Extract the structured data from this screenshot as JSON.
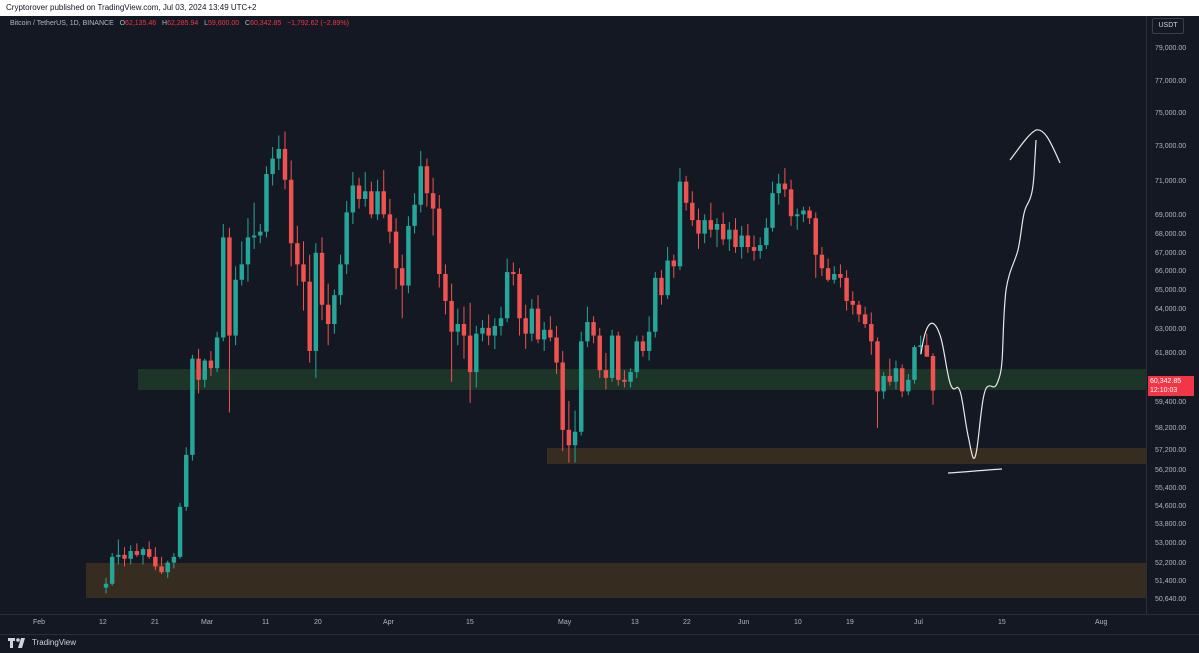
{
  "publish": {
    "text": "Cryptorover published on TradingView.com, Jul 03, 2024 13:49 UTC+2"
  },
  "symbol": {
    "name": "Bitcoin / TetherUS, 1D, BINANCE",
    "o_label": "O",
    "o": "62,135.46",
    "h_label": "H",
    "h": "62,285.94",
    "l_label": "L",
    "l": "59,600.00",
    "c_label": "C",
    "c": "60,342.85",
    "change": "−1,792.62 (−2.89%)"
  },
  "currency": "USDT",
  "current_price": {
    "price": "60,342.85",
    "countdown": "12:10:03"
  },
  "price_ticks": [
    "79,000.00",
    "77,000.00",
    "75,000.00",
    "73,000.00",
    "71,000.00",
    "69,000.00",
    "68,000.00",
    "67,000.00",
    "66,000.00",
    "65,000.00",
    "64,000.00",
    "63,000.00",
    "61,800.00",
    "59,400.00",
    "58,200.00",
    "57,200.00",
    "56,200.00",
    "55,400.00",
    "54,600.00",
    "53,800.00",
    "53,000.00",
    "52,200.00",
    "51,400.00",
    "50,640.00"
  ],
  "time_ticks": [
    "Feb",
    "12",
    "21",
    "Mar",
    "11",
    "20",
    "Apr",
    "15",
    "May",
    "13",
    "22",
    "Jun",
    "10",
    "19",
    "Jul",
    "15",
    "Aug"
  ],
  "colors": {
    "up": "#26a69a",
    "down": "#ef5350",
    "green_zone": "#1e3b2a",
    "orange_zone": "#3a3020",
    "bg": "#141823"
  },
  "footer": {
    "brand": "TradingView"
  },
  "chart_data": {
    "type": "candlestick",
    "timeframe": "1D",
    "ylim": [
      50000,
      80000
    ],
    "zones": [
      {
        "kind": "support",
        "low": 59800,
        "high": 61000,
        "color": "green"
      },
      {
        "kind": "support",
        "low": 56500,
        "high": 57400,
        "color": "orange"
      },
      {
        "kind": "support",
        "low": 50800,
        "high": 52400,
        "color": "orange"
      }
    ],
    "candles": [
      {
        "o": 50100,
        "h": 50600,
        "l": 49800,
        "c": 50300
      },
      {
        "o": 50300,
        "h": 51900,
        "l": 50200,
        "c": 51700
      },
      {
        "o": 51700,
        "h": 52600,
        "l": 51300,
        "c": 51800
      },
      {
        "o": 51800,
        "h": 52200,
        "l": 51200,
        "c": 51600
      },
      {
        "o": 51600,
        "h": 52300,
        "l": 51300,
        "c": 52000
      },
      {
        "o": 52000,
        "h": 52400,
        "l": 51700,
        "c": 51800
      },
      {
        "o": 51800,
        "h": 52200,
        "l": 51300,
        "c": 52100
      },
      {
        "o": 52100,
        "h": 52500,
        "l": 51600,
        "c": 51700
      },
      {
        "o": 51700,
        "h": 52200,
        "l": 51000,
        "c": 51200
      },
      {
        "o": 51200,
        "h": 51700,
        "l": 50800,
        "c": 50900
      },
      {
        "o": 50900,
        "h": 51500,
        "l": 50600,
        "c": 51400
      },
      {
        "o": 51400,
        "h": 51900,
        "l": 51100,
        "c": 51700
      },
      {
        "o": 51700,
        "h": 54500,
        "l": 51600,
        "c": 54300
      },
      {
        "o": 54300,
        "h": 57400,
        "l": 54100,
        "c": 57000
      },
      {
        "o": 57000,
        "h": 62200,
        "l": 56700,
        "c": 62000
      },
      {
        "o": 62000,
        "h": 62500,
        "l": 60200,
        "c": 60900
      },
      {
        "o": 60900,
        "h": 62000,
        "l": 60500,
        "c": 61900
      },
      {
        "o": 61900,
        "h": 62400,
        "l": 61100,
        "c": 61500
      },
      {
        "o": 61500,
        "h": 63400,
        "l": 61300,
        "c": 63100
      },
      {
        "o": 63100,
        "h": 69000,
        "l": 62900,
        "c": 68300
      },
      {
        "o": 68300,
        "h": 68800,
        "l": 59200,
        "c": 63200
      },
      {
        "o": 63200,
        "h": 66800,
        "l": 62700,
        "c": 66100
      },
      {
        "o": 66100,
        "h": 68100,
        "l": 65800,
        "c": 66900
      },
      {
        "o": 66900,
        "h": 69300,
        "l": 66000,
        "c": 68300
      },
      {
        "o": 68300,
        "h": 70100,
        "l": 67700,
        "c": 68400
      },
      {
        "o": 68400,
        "h": 69000,
        "l": 68000,
        "c": 68600
      },
      {
        "o": 68600,
        "h": 72000,
        "l": 68300,
        "c": 71600
      },
      {
        "o": 71600,
        "h": 73000,
        "l": 71000,
        "c": 72400
      },
      {
        "o": 72400,
        "h": 73600,
        "l": 71800,
        "c": 72900
      },
      {
        "o": 72900,
        "h": 73800,
        "l": 70800,
        "c": 71300
      },
      {
        "o": 71300,
        "h": 72300,
        "l": 66800,
        "c": 68000
      },
      {
        "o": 68000,
        "h": 68900,
        "l": 65800,
        "c": 66900
      },
      {
        "o": 66900,
        "h": 68100,
        "l": 64500,
        "c": 66000
      },
      {
        "o": 66000,
        "h": 67400,
        "l": 61800,
        "c": 62400
      },
      {
        "o": 62400,
        "h": 68000,
        "l": 61000,
        "c": 67500
      },
      {
        "o": 67500,
        "h": 68300,
        "l": 64000,
        "c": 64800
      },
      {
        "o": 64800,
        "h": 65900,
        "l": 62700,
        "c": 63800
      },
      {
        "o": 63800,
        "h": 65600,
        "l": 63300,
        "c": 65300
      },
      {
        "o": 65300,
        "h": 67400,
        "l": 64800,
        "c": 66900
      },
      {
        "o": 66900,
        "h": 70200,
        "l": 66400,
        "c": 69600
      },
      {
        "o": 69600,
        "h": 71700,
        "l": 69000,
        "c": 71000
      },
      {
        "o": 71000,
        "h": 71400,
        "l": 69800,
        "c": 70300
      },
      {
        "o": 70300,
        "h": 71700,
        "l": 69900,
        "c": 70700
      },
      {
        "o": 70700,
        "h": 71200,
        "l": 69300,
        "c": 69500
      },
      {
        "o": 69500,
        "h": 71300,
        "l": 69200,
        "c": 70700
      },
      {
        "o": 70700,
        "h": 71800,
        "l": 69300,
        "c": 69500
      },
      {
        "o": 69500,
        "h": 70300,
        "l": 68000,
        "c": 68600
      },
      {
        "o": 68600,
        "h": 69300,
        "l": 65600,
        "c": 66700
      },
      {
        "o": 66700,
        "h": 67400,
        "l": 64100,
        "c": 65800
      },
      {
        "o": 65800,
        "h": 69400,
        "l": 65400,
        "c": 68900
      },
      {
        "o": 68900,
        "h": 70600,
        "l": 68500,
        "c": 70000
      },
      {
        "o": 70000,
        "h": 72800,
        "l": 69600,
        "c": 72000
      },
      {
        "o": 72000,
        "h": 72400,
        "l": 69900,
        "c": 70600
      },
      {
        "o": 70600,
        "h": 71400,
        "l": 68400,
        "c": 69800
      },
      {
        "o": 69800,
        "h": 70500,
        "l": 65700,
        "c": 66400
      },
      {
        "o": 66400,
        "h": 66900,
        "l": 64300,
        "c": 65000
      },
      {
        "o": 65000,
        "h": 65900,
        "l": 60800,
        "c": 63400
      },
      {
        "o": 63400,
        "h": 64600,
        "l": 62700,
        "c": 63800
      },
      {
        "o": 63800,
        "h": 64700,
        "l": 62000,
        "c": 63200
      },
      {
        "o": 63200,
        "h": 64900,
        "l": 59700,
        "c": 61300
      },
      {
        "o": 61300,
        "h": 63700,
        "l": 60500,
        "c": 63300
      },
      {
        "o": 63300,
        "h": 64000,
        "l": 62900,
        "c": 63600
      },
      {
        "o": 63600,
        "h": 64300,
        "l": 62700,
        "c": 63200
      },
      {
        "o": 63200,
        "h": 64100,
        "l": 62500,
        "c": 63700
      },
      {
        "o": 63700,
        "h": 64700,
        "l": 63200,
        "c": 64100
      },
      {
        "o": 64100,
        "h": 67200,
        "l": 63900,
        "c": 66500
      },
      {
        "o": 66500,
        "h": 67000,
        "l": 65800,
        "c": 66400
      },
      {
        "o": 66400,
        "h": 66700,
        "l": 63200,
        "c": 64100
      },
      {
        "o": 64100,
        "h": 64800,
        "l": 62500,
        "c": 63300
      },
      {
        "o": 63300,
        "h": 65100,
        "l": 62900,
        "c": 64600
      },
      {
        "o": 64600,
        "h": 65300,
        "l": 62800,
        "c": 63000
      },
      {
        "o": 63000,
        "h": 63900,
        "l": 62400,
        "c": 63500
      },
      {
        "o": 63500,
        "h": 64200,
        "l": 62900,
        "c": 63100
      },
      {
        "o": 63100,
        "h": 63700,
        "l": 61200,
        "c": 61800
      },
      {
        "o": 61800,
        "h": 62400,
        "l": 57200,
        "c": 58300
      },
      {
        "o": 58300,
        "h": 59800,
        "l": 56600,
        "c": 57500
      },
      {
        "o": 57500,
        "h": 59300,
        "l": 56600,
        "c": 58200
      },
      {
        "o": 58200,
        "h": 63400,
        "l": 58000,
        "c": 62900
      },
      {
        "o": 62900,
        "h": 64700,
        "l": 62600,
        "c": 63900
      },
      {
        "o": 63900,
        "h": 64200,
        "l": 62800,
        "c": 63200
      },
      {
        "o": 63200,
        "h": 63600,
        "l": 61000,
        "c": 61400
      },
      {
        "o": 61400,
        "h": 62300,
        "l": 60400,
        "c": 61000
      },
      {
        "o": 61000,
        "h": 63500,
        "l": 60800,
        "c": 63200
      },
      {
        "o": 63200,
        "h": 63400,
        "l": 60600,
        "c": 60900
      },
      {
        "o": 60900,
        "h": 61400,
        "l": 60500,
        "c": 60800
      },
      {
        "o": 60800,
        "h": 61500,
        "l": 60500,
        "c": 61300
      },
      {
        "o": 61300,
        "h": 63200,
        "l": 61000,
        "c": 62900
      },
      {
        "o": 62900,
        "h": 63200,
        "l": 62100,
        "c": 62400
      },
      {
        "o": 62400,
        "h": 64200,
        "l": 61900,
        "c": 63400
      },
      {
        "o": 63400,
        "h": 66500,
        "l": 63100,
        "c": 66200
      },
      {
        "o": 66200,
        "h": 66600,
        "l": 64800,
        "c": 65300
      },
      {
        "o": 65300,
        "h": 67800,
        "l": 65100,
        "c": 67100
      },
      {
        "o": 67100,
        "h": 67400,
        "l": 66200,
        "c": 66800
      },
      {
        "o": 66800,
        "h": 71900,
        "l": 66600,
        "c": 71200
      },
      {
        "o": 71200,
        "h": 71500,
        "l": 69700,
        "c": 70100
      },
      {
        "o": 70100,
        "h": 70700,
        "l": 68900,
        "c": 69200
      },
      {
        "o": 69200,
        "h": 69800,
        "l": 67700,
        "c": 68500
      },
      {
        "o": 68500,
        "h": 69500,
        "l": 68000,
        "c": 69200
      },
      {
        "o": 69200,
        "h": 70100,
        "l": 68300,
        "c": 68700
      },
      {
        "o": 68700,
        "h": 69300,
        "l": 67800,
        "c": 69000
      },
      {
        "o": 69000,
        "h": 69600,
        "l": 67900,
        "c": 68200
      },
      {
        "o": 68200,
        "h": 69100,
        "l": 67600,
        "c": 68700
      },
      {
        "o": 68700,
        "h": 69300,
        "l": 67500,
        "c": 67800
      },
      {
        "o": 67800,
        "h": 68900,
        "l": 67200,
        "c": 68400
      },
      {
        "o": 68400,
        "h": 69000,
        "l": 67500,
        "c": 67800
      },
      {
        "o": 67800,
        "h": 68400,
        "l": 67100,
        "c": 67600
      },
      {
        "o": 67600,
        "h": 68300,
        "l": 67200,
        "c": 67900
      },
      {
        "o": 67900,
        "h": 69300,
        "l": 67700,
        "c": 68800
      },
      {
        "o": 68800,
        "h": 71200,
        "l": 68600,
        "c": 70600
      },
      {
        "o": 70600,
        "h": 71600,
        "l": 70000,
        "c": 71100
      },
      {
        "o": 71100,
        "h": 71900,
        "l": 70400,
        "c": 70800
      },
      {
        "o": 70800,
        "h": 71300,
        "l": 68900,
        "c": 69400
      },
      {
        "o": 69400,
        "h": 69800,
        "l": 68700,
        "c": 69500
      },
      {
        "o": 69500,
        "h": 69900,
        "l": 69100,
        "c": 69700
      },
      {
        "o": 69700,
        "h": 69900,
        "l": 69000,
        "c": 69300
      },
      {
        "o": 69300,
        "h": 69600,
        "l": 66200,
        "c": 67400
      },
      {
        "o": 67400,
        "h": 67800,
        "l": 66300,
        "c": 66700
      },
      {
        "o": 66700,
        "h": 67200,
        "l": 66000,
        "c": 66100
      },
      {
        "o": 66100,
        "h": 66800,
        "l": 65900,
        "c": 66400
      },
      {
        "o": 66400,
        "h": 66900,
        "l": 65700,
        "c": 66200
      },
      {
        "o": 66200,
        "h": 66600,
        "l": 64500,
        "c": 65000
      },
      {
        "o": 65000,
        "h": 65500,
        "l": 64300,
        "c": 64800
      },
      {
        "o": 64800,
        "h": 65000,
        "l": 63900,
        "c": 64300
      },
      {
        "o": 64300,
        "h": 64700,
        "l": 63600,
        "c": 63800
      },
      {
        "o": 63800,
        "h": 64400,
        "l": 62200,
        "c": 62900
      },
      {
        "o": 62900,
        "h": 63100,
        "l": 58400,
        "c": 60300
      },
      {
        "o": 60300,
        "h": 61300,
        "l": 59900,
        "c": 61100
      },
      {
        "o": 61100,
        "h": 62000,
        "l": 60600,
        "c": 60800
      },
      {
        "o": 60800,
        "h": 61900,
        "l": 60400,
        "c": 61500
      },
      {
        "o": 61500,
        "h": 61700,
        "l": 60000,
        "c": 60300
      },
      {
        "o": 60300,
        "h": 61200,
        "l": 60100,
        "c": 60900
      },
      {
        "o": 60900,
        "h": 62700,
        "l": 60700,
        "c": 62600
      },
      {
        "o": 62600,
        "h": 63200,
        "l": 62200,
        "c": 62700
      },
      {
        "o": 62700,
        "h": 63300,
        "l": 62100,
        "c": 62100
      },
      {
        "o": 62135,
        "h": 62286,
        "l": 59600,
        "c": 60343
      }
    ]
  }
}
